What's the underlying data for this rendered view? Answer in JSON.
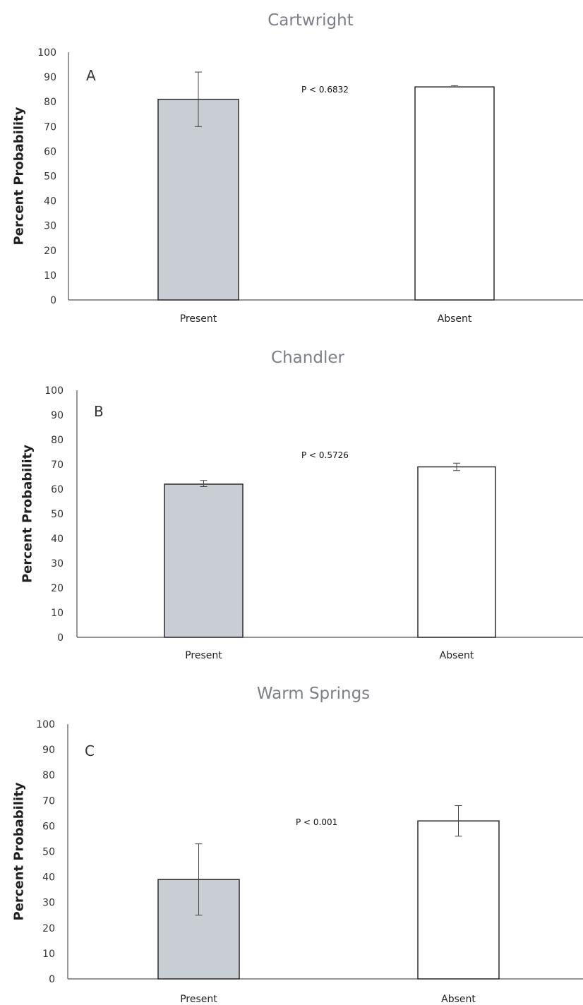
{
  "chart_data": [
    {
      "type": "bar",
      "title": "Cartwright",
      "panel_label": "A",
      "annotation": "P < 0.6832",
      "ylabel": "Percent Probability",
      "xlabel": "",
      "categories": [
        "Present",
        "Absent"
      ],
      "values": [
        81,
        86
      ],
      "error": [
        [
          70,
          92
        ],
        [
          86,
          86.5
        ]
      ],
      "ylim": [
        0,
        100
      ],
      "yticks": [
        0,
        10,
        20,
        30,
        40,
        50,
        60,
        70,
        80,
        90,
        100
      ],
      "bar_colors": [
        "#c9ced5",
        "#ffffff"
      ],
      "grid": false
    },
    {
      "type": "bar",
      "title": "Chandler",
      "panel_label": "B",
      "annotation": "P < 0.5726",
      "ylabel": "Percent Probability",
      "xlabel": "",
      "categories": [
        "Present",
        "Absent"
      ],
      "values": [
        62,
        69
      ],
      "error": [
        [
          61,
          63.5
        ],
        [
          67.5,
          70.5
        ]
      ],
      "ylim": [
        0,
        100
      ],
      "yticks": [
        0,
        10,
        20,
        30,
        40,
        50,
        60,
        70,
        80,
        90,
        100
      ],
      "bar_colors": [
        "#c9ced5",
        "#ffffff"
      ],
      "grid": false
    },
    {
      "type": "bar",
      "title": "Warm Springs",
      "panel_label": "C",
      "annotation": "P < 0.001",
      "ylabel": "Percent Probability",
      "xlabel": "",
      "categories": [
        "Present",
        "Absent"
      ],
      "values": [
        39,
        62
      ],
      "error": [
        [
          25,
          53
        ],
        [
          56,
          68
        ]
      ],
      "ylim": [
        0,
        100
      ],
      "yticks": [
        0,
        10,
        20,
        30,
        40,
        50,
        60,
        70,
        80,
        90,
        100
      ],
      "bar_colors": [
        "#c9ced5",
        "#ffffff"
      ],
      "grid": false
    }
  ]
}
